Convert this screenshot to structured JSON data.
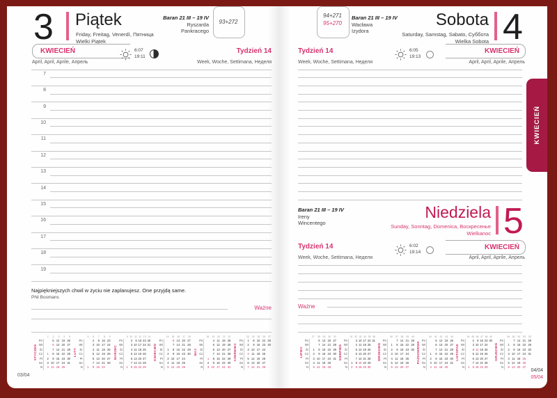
{
  "colors": {
    "frame": "#7b1a14",
    "tab": "#a51944",
    "accent_pink": "#d6336e",
    "crimson": "#c11a53",
    "bar_pink": "#e26189"
  },
  "tab": {
    "label": "KWIECIEŃ"
  },
  "left_page": {
    "day_number": "3",
    "day_name": "Piątek",
    "day_i18n": "Friday, Freitag, Venerdì, Пятница",
    "holiday": "Wielki Piątek",
    "zodiac": "Baran 21 III – 19 IV",
    "name_day_1": "Ryszarda",
    "name_day_2": "Pankracego",
    "day_counter": "93+272",
    "month_label": "KWIECIEŃ",
    "month_i18n": "April, April, Aprile, Апрель",
    "week_label": "Tydzień 14",
    "week_i18n": "Week, Woche, Settimana, Неделя",
    "sunrise": "6:07",
    "sunset": "19:11",
    "hours": [
      "7",
      "8",
      "9",
      "10",
      "11",
      "12",
      "13",
      "14",
      "15",
      "16",
      "17",
      "18",
      "19"
    ],
    "quote": "Najpiękniejszych chwil w życiu nie zaplanujesz. One przyjdą same.",
    "quote_author": "Phil Bosmans",
    "important_label": "Ważne",
    "page_ref": "03/04"
  },
  "right_page": {
    "saturday": {
      "day_number": "4",
      "day_name": "Sobota",
      "day_i18n": "Saturday, Samstag, Sabato, Суббота",
      "holiday": "Wielka Sobota",
      "zodiac": "Baran 21 III – 19 IV",
      "name_day_1": "Wacława",
      "name_day_2": "Izydora",
      "day_counter_top": "94+271",
      "day_counter_bottom": "95+270",
      "month_label": "KWIECIEŃ",
      "month_i18n": "April, April, Aprile, Апрель",
      "week_label": "Tydzień 14",
      "week_i18n": "Week, Woche, Settimana, Неделя",
      "sunrise": "6:05",
      "sunset": "19:13"
    },
    "sunday": {
      "day_number": "5",
      "day_name": "Niedziela",
      "day_i18n": "Sunday, Sonntag, Domenica, Воскресенье",
      "holiday": "Wielkanoc",
      "zodiac": "Baran 21 III – 19 IV",
      "name_day_1": "Ireny",
      "name_day_2": "Wincentego",
      "month_label": "KWIECIEŃ",
      "month_i18n": "April, April, Aprile, Апрель",
      "week_label": "Tydzień 14",
      "week_i18n": "Week, Woche, Settimana, Неделя",
      "sunrise": "6:02",
      "sunset": "19:14"
    },
    "important_label": "Ważne",
    "page_ref_top": "04/04",
    "page_ref_bottom": "05/04"
  },
  "mini_calendars": {
    "day_abbrevs": [
      "Pn",
      "Wt",
      "Śr",
      "Cz",
      "Pt",
      "So",
      "N"
    ],
    "left_months": [
      {
        "name": "STYCZEŃ",
        "weeks": [
          "1",
          "2",
          "3",
          "4",
          "5"
        ],
        "pink": [
          1,
          6
        ],
        "rows": [
          [
            "",
            "5",
            "12",
            "19",
            "26"
          ],
          [
            "",
            "6",
            "13",
            "20",
            "27"
          ],
          [
            "",
            "7",
            "14",
            "21",
            "28"
          ],
          [
            "1",
            "8",
            "15",
            "22",
            "29"
          ],
          [
            "2",
            "9",
            "16",
            "23",
            "30"
          ],
          [
            "3",
            "10",
            "17",
            "24",
            "31"
          ],
          [
            "4",
            "11",
            "18",
            "25",
            ""
          ]
        ]
      },
      {
        "name": "LUTY",
        "weeks": [
          "5",
          "6",
          "7",
          "8",
          "9"
        ],
        "pink": [],
        "rows": [
          [
            "",
            "2",
            "9",
            "16",
            "23"
          ],
          [
            "",
            "3",
            "10",
            "17",
            "24"
          ],
          [
            "",
            "4",
            "11",
            "18",
            "25"
          ],
          [
            "",
            "5",
            "12",
            "19",
            "26"
          ],
          [
            "",
            "6",
            "13",
            "20",
            "27"
          ],
          [
            "",
            "7",
            "14",
            "21",
            "28"
          ],
          [
            "1",
            "8",
            "15",
            "22",
            ""
          ]
        ]
      },
      {
        "name": "MARZEC",
        "weeks": [
          "9",
          "10",
          "11",
          "12",
          "13",
          "14"
        ],
        "pink": [],
        "rows": [
          [
            "",
            "2",
            "9",
            "16",
            "23",
            "30"
          ],
          [
            "",
            "3",
            "10",
            "17",
            "24",
            "31"
          ],
          [
            "",
            "4",
            "11",
            "18",
            "25",
            ""
          ],
          [
            "",
            "5",
            "12",
            "19",
            "26",
            ""
          ],
          [
            "",
            "6",
            "13",
            "20",
            "27",
            ""
          ],
          [
            "",
            "7",
            "14",
            "21",
            "28",
            ""
          ],
          [
            "1",
            "8",
            "15",
            "22",
            "29",
            ""
          ]
        ]
      },
      {
        "name": "KWIECIEŃ",
        "weeks": [
          "14",
          "15",
          "16",
          "17",
          "18"
        ],
        "pink": [
          5,
          6
        ],
        "rows": [
          [
            "",
            "6",
            "13",
            "20",
            "27"
          ],
          [
            "",
            "7",
            "14",
            "21",
            "28"
          ],
          [
            "1",
            "8",
            "15",
            "22",
            "29"
          ],
          [
            "2",
            "9",
            "16",
            "23",
            "30"
          ],
          [
            "3",
            "10",
            "17",
            "24",
            ""
          ],
          [
            "4",
            "11",
            "18",
            "25",
            ""
          ],
          [
            "5",
            "12",
            "19",
            "26",
            ""
          ]
        ]
      },
      {
        "name": "MAJ",
        "weeks": [
          "18",
          "19",
          "20",
          "21",
          "22"
        ],
        "pink": [
          1,
          3
        ],
        "rows": [
          [
            "",
            "4",
            "11",
            "18",
            "25"
          ],
          [
            "",
            "5",
            "12",
            "19",
            "26"
          ],
          [
            "",
            "6",
            "13",
            "20",
            "27"
          ],
          [
            "",
            "7",
            "14",
            "21",
            "28"
          ],
          [
            "1",
            "8",
            "15",
            "22",
            "29"
          ],
          [
            "2",
            "9",
            "16",
            "23",
            "30"
          ],
          [
            "3",
            "10",
            "17",
            "24",
            "31"
          ]
        ]
      },
      {
        "name": "CZERWIEC",
        "weeks": [
          "23",
          "24",
          "25",
          "26",
          "27"
        ],
        "pink": [
          4
        ],
        "rows": [
          [
            "1",
            "8",
            "15",
            "22",
            "29"
          ],
          [
            "2",
            "9",
            "16",
            "23",
            "30"
          ],
          [
            "3",
            "10",
            "17",
            "24",
            ""
          ],
          [
            "4",
            "11",
            "18",
            "25",
            ""
          ],
          [
            "5",
            "12",
            "19",
            "26",
            ""
          ],
          [
            "6",
            "13",
            "20",
            "27",
            ""
          ],
          [
            "7",
            "14",
            "21",
            "28",
            ""
          ]
        ]
      }
    ],
    "right_months": [
      {
        "name": "LIPIEC",
        "weeks": [
          "27",
          "28",
          "29",
          "30",
          "31"
        ],
        "pink": [],
        "rows": [
          [
            "",
            "6",
            "13",
            "20",
            "27"
          ],
          [
            "",
            "7",
            "14",
            "21",
            "28"
          ],
          [
            "1",
            "8",
            "15",
            "22",
            "29"
          ],
          [
            "2",
            "9",
            "16",
            "23",
            "30"
          ],
          [
            "3",
            "10",
            "17",
            "24",
            "31"
          ],
          [
            "4",
            "11",
            "18",
            "25",
            ""
          ],
          [
            "5",
            "12",
            "19",
            "26",
            ""
          ]
        ]
      },
      {
        "name": "SIERPIEŃ",
        "weeks": [
          "31",
          "32",
          "33",
          "34",
          "35",
          "36"
        ],
        "pink": [
          15
        ],
        "rows": [
          [
            "",
            "3",
            "10",
            "17",
            "24",
            "31"
          ],
          [
            "",
            "4",
            "11",
            "18",
            "25",
            ""
          ],
          [
            "",
            "5",
            "12",
            "19",
            "26",
            ""
          ],
          [
            "",
            "6",
            "13",
            "20",
            "27",
            ""
          ],
          [
            "",
            "7",
            "14",
            "21",
            "28",
            ""
          ],
          [
            "1",
            "8",
            "15",
            "22",
            "29",
            ""
          ],
          [
            "2",
            "9",
            "16",
            "23",
            "30",
            ""
          ]
        ]
      },
      {
        "name": "WRZESIEŃ",
        "weeks": [
          "36",
          "37",
          "38",
          "39",
          "40"
        ],
        "pink": [],
        "rows": [
          [
            "",
            "7",
            "14",
            "21",
            "28"
          ],
          [
            "1",
            "8",
            "15",
            "22",
            "29"
          ],
          [
            "2",
            "9",
            "16",
            "23",
            "30"
          ],
          [
            "3",
            "10",
            "17",
            "24",
            ""
          ],
          [
            "4",
            "11",
            "18",
            "25",
            ""
          ],
          [
            "5",
            "12",
            "19",
            "26",
            ""
          ],
          [
            "6",
            "13",
            "20",
            "27",
            ""
          ]
        ]
      },
      {
        "name": "PAŹDZIERNIK",
        "weeks": [
          "40",
          "41",
          "42",
          "43",
          "44"
        ],
        "pink": [],
        "rows": [
          [
            "",
            "5",
            "12",
            "19",
            "26"
          ],
          [
            "",
            "6",
            "13",
            "20",
            "27"
          ],
          [
            "",
            "7",
            "14",
            "21",
            "28"
          ],
          [
            "1",
            "8",
            "15",
            "22",
            "29"
          ],
          [
            "2",
            "9",
            "16",
            "23",
            "30"
          ],
          [
            "3",
            "10",
            "17",
            "24",
            "31"
          ],
          [
            "4",
            "11",
            "18",
            "25",
            ""
          ]
        ]
      },
      {
        "name": "LISTOPAD",
        "weeks": [
          "44",
          "45",
          "46",
          "47",
          "48",
          "49"
        ],
        "pink": [
          1,
          11
        ],
        "rows": [
          [
            "",
            "2",
            "9",
            "16",
            "23",
            "30"
          ],
          [
            "",
            "3",
            "10",
            "17",
            "24",
            ""
          ],
          [
            "",
            "4",
            "11",
            "18",
            "25",
            ""
          ],
          [
            "",
            "5",
            "12",
            "19",
            "26",
            ""
          ],
          [
            "",
            "6",
            "13",
            "20",
            "27",
            ""
          ],
          [
            "",
            "7",
            "14",
            "21",
            "28",
            ""
          ],
          [
            "1",
            "8",
            "15",
            "22",
            "29",
            ""
          ]
        ]
      },
      {
        "name": "GRUDZIEŃ",
        "weeks": [
          "49",
          "50",
          "51",
          "52",
          "53"
        ],
        "pink": [
          25,
          26
        ],
        "rows": [
          [
            "",
            "7",
            "14",
            "21",
            "28"
          ],
          [
            "1",
            "8",
            "15",
            "22",
            "29"
          ],
          [
            "2",
            "9",
            "16",
            "23",
            "30"
          ],
          [
            "3",
            "10",
            "17",
            "24",
            "31"
          ],
          [
            "4",
            "11",
            "18",
            "25",
            ""
          ],
          [
            "5",
            "12",
            "19",
            "26",
            ""
          ],
          [
            "6",
            "13",
            "20",
            "27",
            ""
          ]
        ]
      }
    ]
  }
}
